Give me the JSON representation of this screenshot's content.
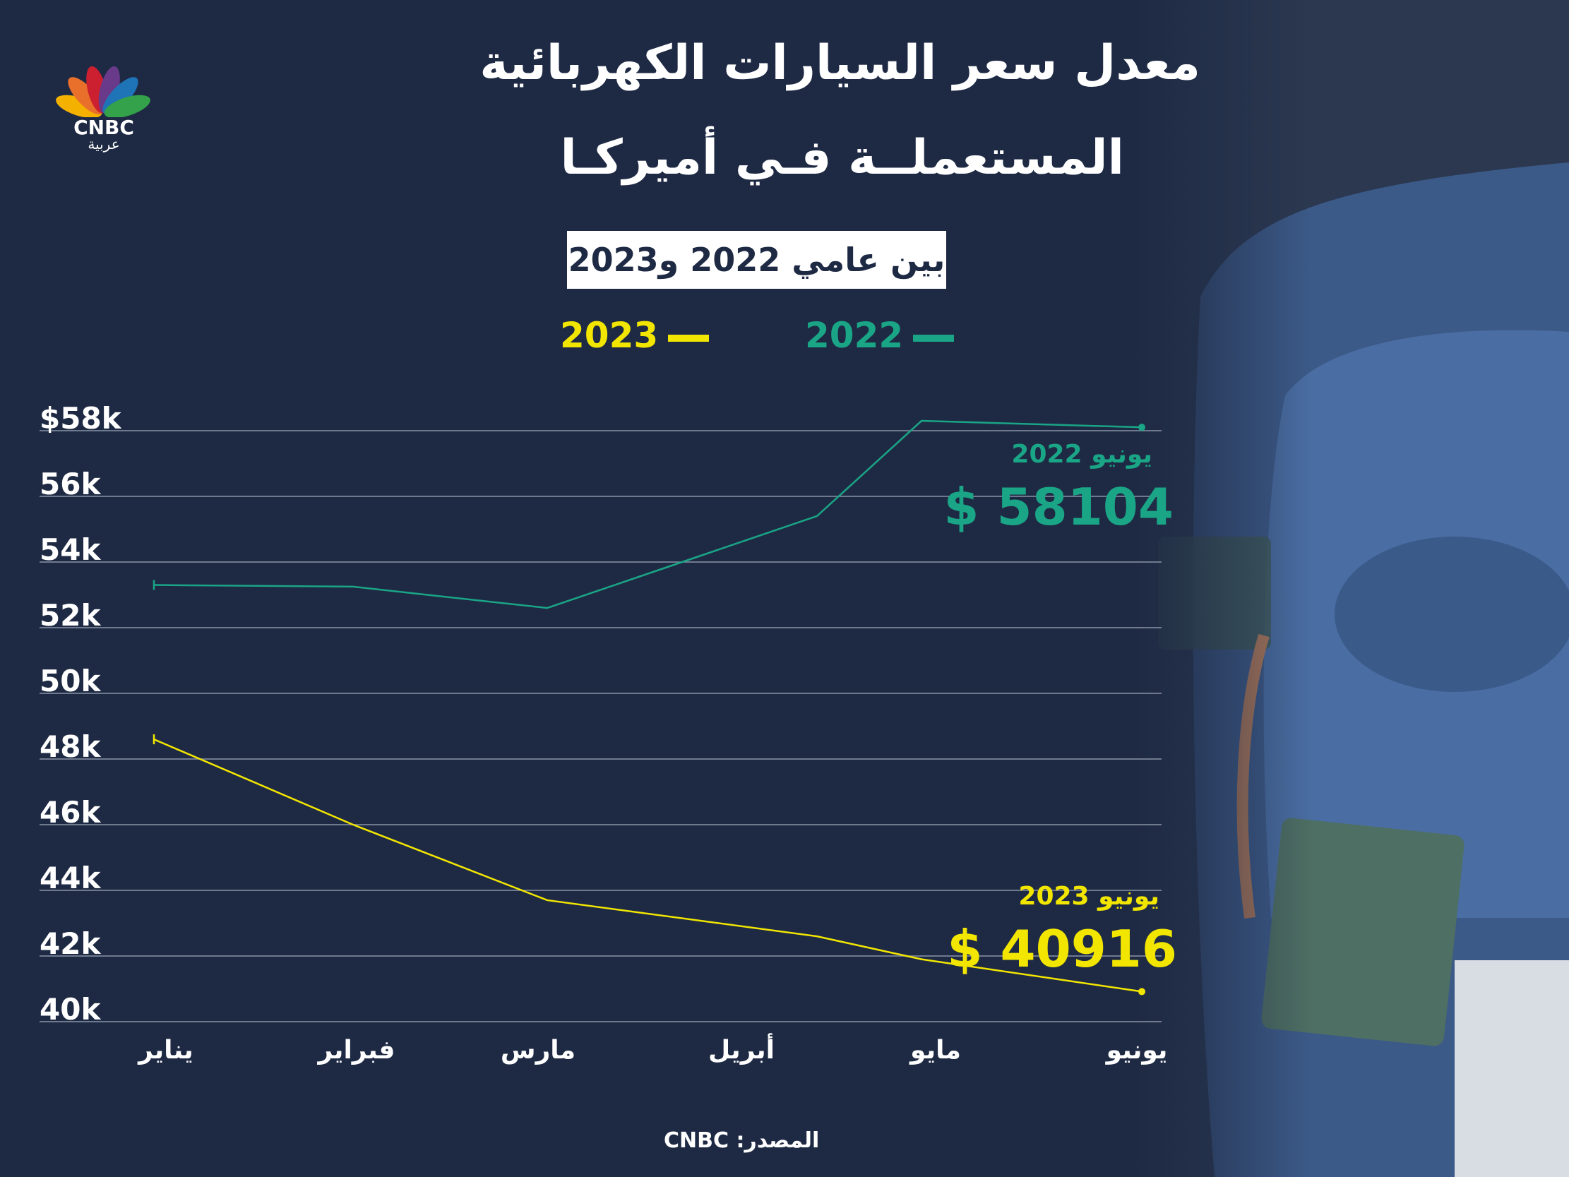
{
  "brand": {
    "name": "CNBC",
    "subname": "عربية"
  },
  "title_line1": "معدل سعر السيارات الكهربائية",
  "title_line2": "المستعملــة فـي أميركـا",
  "subtitle": "بين عامي 2022 و2023",
  "source": "المصدر: CNBC",
  "colors": {
    "background": "#1e2a44",
    "series_2022": "#1aa586",
    "series_2023": "#f2e600",
    "grid": "#8a93a6",
    "text": "#ffffff"
  },
  "chart_data": {
    "type": "line",
    "categories": [
      "يناير",
      "فبراير",
      "مارس",
      "أبريل",
      "مايو",
      "يونيو"
    ],
    "y_tick_labels": [
      "$58k",
      "56k",
      "54k",
      "52k",
      "50k",
      "48k",
      "46k",
      "44k",
      "42k",
      "40k"
    ],
    "ylim": [
      40000,
      58000
    ],
    "grid": true,
    "legend_position": "top",
    "series": [
      {
        "name": "2022",
        "color": "#1aa586",
        "values": [
          53300,
          53250,
          52600,
          55400,
          58300,
          58104
        ]
      },
      {
        "name": "2023",
        "color": "#f2e600",
        "values": [
          48600,
          46000,
          43700,
          42600,
          41900,
          40916
        ]
      }
    ],
    "annotations": [
      {
        "series": "2022",
        "label": "يونيو 2022",
        "value": "$ 58104"
      },
      {
        "series": "2023",
        "label": "يونيو 2023",
        "value": "$ 40916"
      }
    ]
  }
}
